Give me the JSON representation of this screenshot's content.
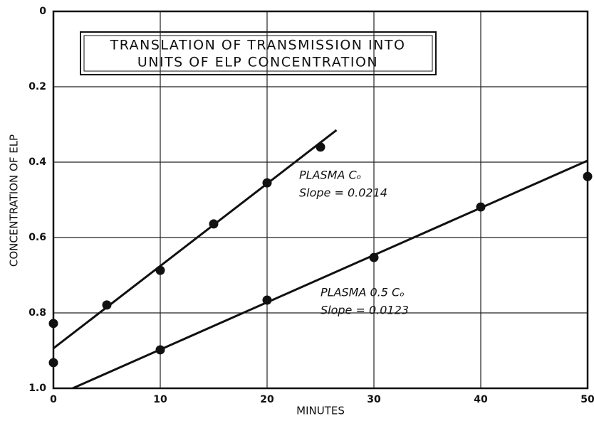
{
  "chart_data": {
    "type": "scatter",
    "title": [
      "TRANSLATION OF TRANSMISSION INTO",
      "UNITS OF ELP CONCENTRATION"
    ],
    "xlabel": "MINUTES",
    "ylabel": "CONCENTRATION OF ELP",
    "xlim": [
      0,
      50
    ],
    "ylim": [
      0,
      1
    ],
    "y_inverted": true,
    "xticks": [
      0,
      10,
      20,
      30,
      40,
      50
    ],
    "yticks": [
      0,
      0.2,
      0.4,
      0.6,
      0.8,
      {
        "value": 1,
        "label": "1.0"
      }
    ],
    "grid": true,
    "series": [
      {
        "name": "PLASMA Cₒ",
        "annotation": "Slope = 0.0214",
        "color": "#111111",
        "x": [
          0,
          5,
          10,
          15,
          20,
          25
        ],
        "values": [
          0.828,
          0.779,
          0.687,
          0.564,
          0.455,
          0.36
        ],
        "fit": {
          "x": [
            0,
            26.5
          ],
          "values": [
            0.894,
            0.315
          ]
        }
      },
      {
        "name": "PLASMA 0.5 Cₒ",
        "annotation": "Slope = 0.0123",
        "color": "#111111",
        "x": [
          0,
          10,
          20,
          30,
          40,
          50
        ],
        "values": [
          0.932,
          0.898,
          0.766,
          0.653,
          0.519,
          0.438
        ],
        "fit": {
          "x": [
            1.8,
            50
          ],
          "values": [
            1,
            0.396
          ]
        }
      }
    ]
  }
}
